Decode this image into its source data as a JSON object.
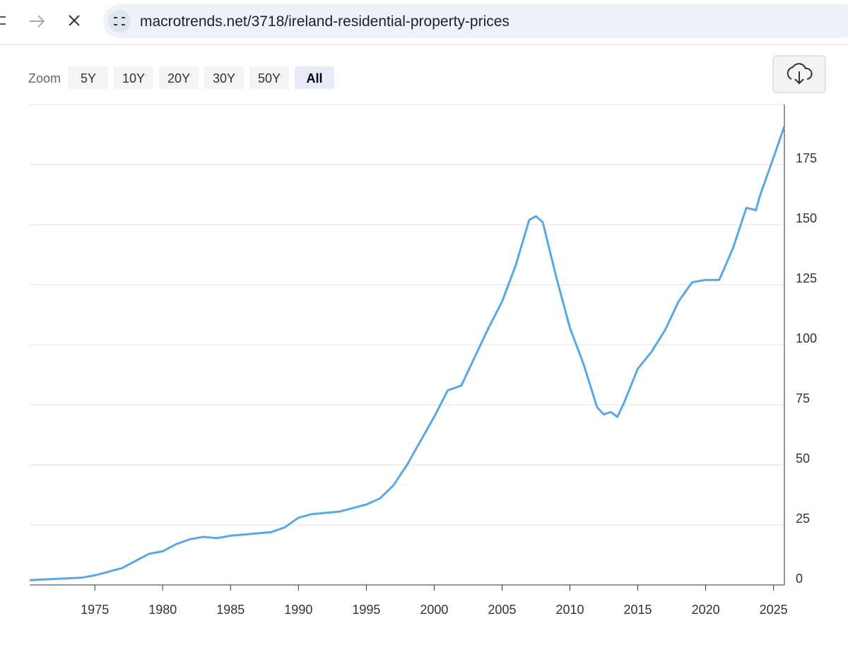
{
  "browser": {
    "url": "macrotrends.net/3718/ireland-residential-property-prices"
  },
  "zoom": {
    "label": "Zoom",
    "options": [
      "5Y",
      "10Y",
      "20Y",
      "30Y",
      "50Y",
      "All"
    ],
    "active": 5
  },
  "chart_data": {
    "type": "line",
    "x": [
      1970.2,
      1972,
      1974,
      1975,
      1976,
      1977,
      1978,
      1979,
      1980,
      1981,
      1982,
      1983,
      1984,
      1985,
      1986,
      1987,
      1988,
      1989,
      1990,
      1991,
      1992,
      1993,
      1994,
      1995,
      1996,
      1997,
      1998,
      1999,
      2000,
      2001,
      2002,
      2003,
      2004,
      2005,
      2006,
      2007,
      2007.5,
      2008,
      2009,
      2010,
      2011,
      2012,
      2012.5,
      2013,
      2013.5,
      2014,
      2015,
      2016,
      2017,
      2018,
      2019,
      2020,
      2021,
      2022,
      2023,
      2023.7,
      2024,
      2025,
      2025.8
    ],
    "values": [
      2,
      2.5,
      3,
      4,
      5.5,
      7,
      10,
      13,
      14,
      17,
      19,
      20,
      19.5,
      20.5,
      21,
      21.5,
      22,
      24,
      28,
      29.5,
      30,
      30.5,
      32,
      33.5,
      36,
      41.5,
      50,
      60,
      70,
      81,
      83,
      95,
      107,
      118,
      133,
      152,
      153.5,
      151,
      128,
      107,
      92,
      74,
      71,
      72,
      70,
      76,
      90,
      97,
      106,
      118,
      126,
      127,
      127,
      140,
      157,
      156,
      162,
      178,
      191
    ],
    "color": "#5aa7e6",
    "xlim": [
      1970.2,
      2025.8
    ],
    "xticks": [
      1975,
      1980,
      1985,
      1990,
      1995,
      2000,
      2005,
      2010,
      2015,
      2020,
      2025
    ],
    "ylim": [
      0,
      200
    ],
    "yticks": [
      0,
      25,
      50,
      75,
      100,
      125,
      150,
      175
    ],
    "grid": true
  }
}
